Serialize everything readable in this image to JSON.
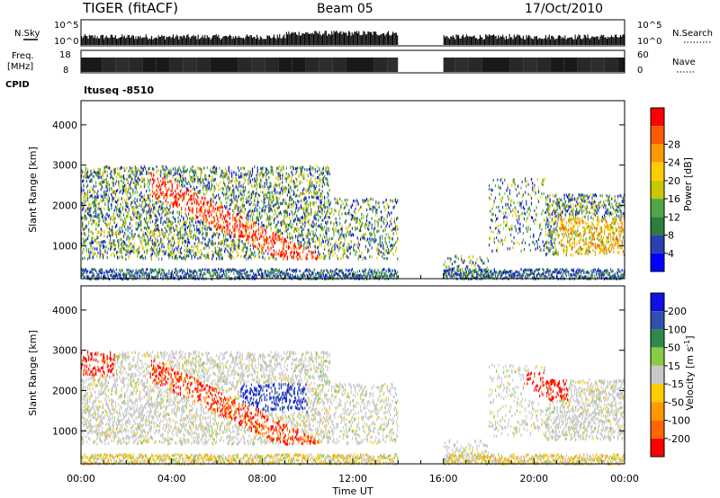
{
  "header": {
    "radar": "TIGER (fitACF)",
    "beam": "Beam 05",
    "date": "17/Oct/2010"
  },
  "params": {
    "nsky_label": "N.Sky",
    "nsky_ticks": [
      "10^5",
      "10^0"
    ],
    "nsearch_label": "N.Search",
    "freq_label_1": "Freq.",
    "freq_label_2": "[MHz]",
    "freq_ticks": [
      "18",
      "8"
    ],
    "nave_label": "Nave",
    "nave_ticks": [
      "60",
      "0"
    ],
    "cpid_label": "CPID",
    "cpid_value": "Ituseq -8510"
  },
  "chart_data": [
    {
      "type": "heatmap",
      "name": "power",
      "ylabel": "Slant Range [km]",
      "ylim": [
        180,
        4600
      ],
      "y_ticks": [
        1000,
        2000,
        3000,
        4000
      ],
      "xlim_hours": [
        0,
        24
      ],
      "x_tick_labels": [
        "00:00",
        "04:00",
        "08:00",
        "12:00",
        "16:00",
        "20:00",
        "00:00"
      ],
      "colorbar": {
        "label": "Power [dB]",
        "ticks": [
          "4",
          "8",
          "12",
          "16",
          "20",
          "24",
          "28"
        ],
        "colors": [
          "#0000ff",
          "#2a3fb0",
          "#2e7d3e",
          "#4fa848",
          "#c8c800",
          "#ffcc00",
          "#ff9900",
          "#ff5a00",
          "#ff0000"
        ]
      },
      "data_gap_hours": [
        14,
        16
      ]
    },
    {
      "type": "heatmap",
      "name": "velocity",
      "ylabel": "Slant Range [km]",
      "xlabel": "Time UT",
      "ylim": [
        180,
        4600
      ],
      "y_ticks": [
        1000,
        2000,
        3000,
        4000
      ],
      "xlim_hours": [
        0,
        24
      ],
      "x_tick_labels": [
        "00:00",
        "04:00",
        "08:00",
        "12:00",
        "16:00",
        "20:00",
        "00:00"
      ],
      "colorbar": {
        "label": "Velocity [m s",
        "label_sup": "-1",
        "label_end": "]",
        "ticks": [
          "200",
          "100",
          "50",
          "15",
          "-15",
          "-50",
          "-100",
          "-200"
        ],
        "colors": [
          "#1010e0",
          "#3050b0",
          "#2e8a4a",
          "#88cc44",
          "#c8c8c8",
          "#ffcc00",
          "#ff9900",
          "#ff6600",
          "#ff0000"
        ]
      },
      "data_gap_hours": [
        14,
        16
      ]
    }
  ]
}
